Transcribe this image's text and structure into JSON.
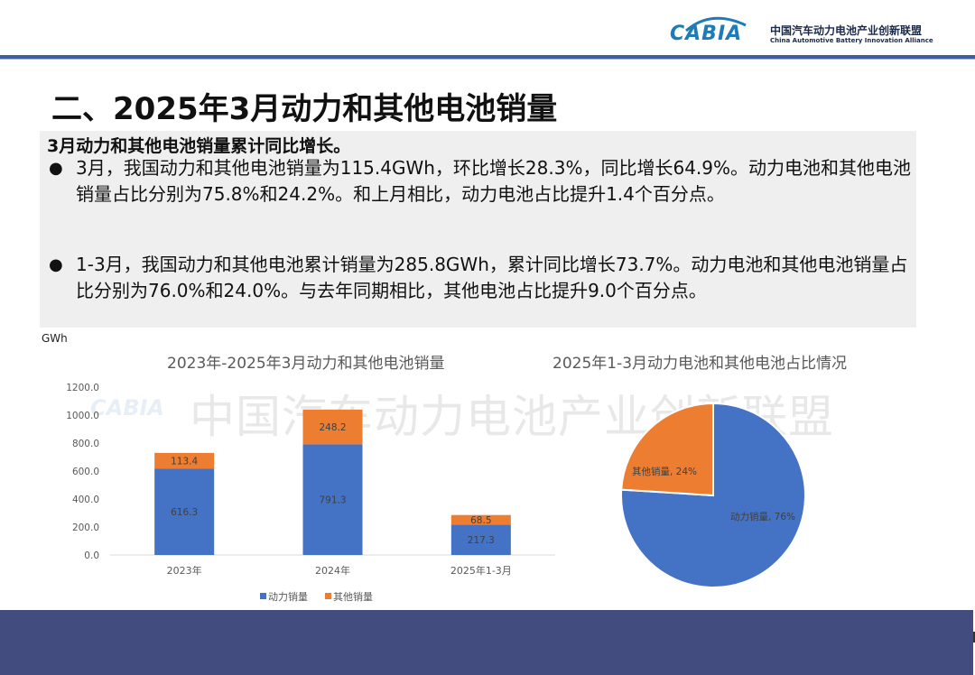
{
  "header": {
    "logo_text": "CABIA",
    "org_name_cn": "中国汽车动力电池产业创新联盟",
    "org_name_en": "China Automotive Battery Innovation Alliance"
  },
  "page_title": "二、2025年3月动力和其他电池销量",
  "summary": {
    "subtitle": "3月动力和其他电池销量累计同比增长。",
    "bullets": [
      "3月，我国动力和其他电池销量为115.4GWh，环比增长28.3%，同比增长64.9%。动力电池和其他电池销量占比分别为75.8%和24.2%。和上月相比，动力电池占比提升1.4个百分点。",
      "1-3月，我国动力和其他电池累计销量为285.8GWh，累计同比增长73.7%。动力电池和其他电池销量占比分别为76.0%和24.0%。与去年同期相比，其他电池占比提升9.0个百分点。"
    ]
  },
  "watermark": "中国汽车动力电池产业创新联盟",
  "colors": {
    "power": "#4472c4",
    "other": "#ed7d31",
    "footer": "#434c7e"
  },
  "chart_data": [
    {
      "type": "bar",
      "stacked": true,
      "title": "2023年-2025年3月动力和其他电池销量",
      "ylabel": "GWh",
      "categories": [
        "2023年",
        "2024年",
        "2025年1-3月"
      ],
      "series": [
        {
          "name": "动力销量",
          "values": [
            616.3,
            791.3,
            217.3
          ],
          "color": "#4472c4"
        },
        {
          "name": "其他销量",
          "values": [
            113.4,
            248.2,
            68.5
          ],
          "color": "#ed7d31"
        }
      ],
      "ylim": [
        0,
        1200
      ],
      "yticks": [
        "0.0",
        "200.0",
        "400.0",
        "600.0",
        "800.0",
        "1000.0",
        "1200.0"
      ],
      "legend": "bottom"
    },
    {
      "type": "pie",
      "title": "2025年1-3月动力电池和其他电池占比情况",
      "slices": [
        {
          "name": "动力销量",
          "value": 76,
          "label": "动力销量, 76%",
          "color": "#4472c4"
        },
        {
          "name": "其他销量",
          "value": 24,
          "label": "其他销量, 24%",
          "color": "#ed7d31"
        }
      ]
    }
  ]
}
